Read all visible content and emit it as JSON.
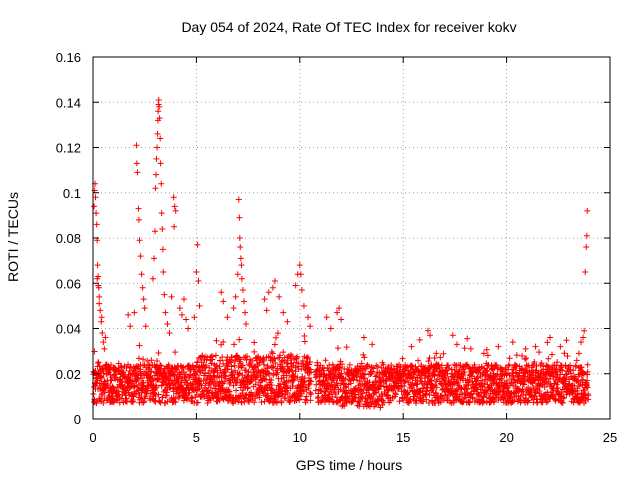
{
  "chart_data": {
    "type": "scatter",
    "title": "Day 054 of 2024, Rate Of TEC Index for receiver kokv",
    "xlabel": "GPS time / hours",
    "ylabel": "ROTI / TECUs",
    "xlim": [
      0,
      25
    ],
    "ylim": [
      0,
      0.16
    ],
    "xticks": [
      0,
      5,
      10,
      15,
      20,
      25
    ],
    "xtick_labels": [
      "0",
      "5",
      "10",
      "15",
      "20",
      "25"
    ],
    "yticks": [
      0,
      0.02,
      0.04,
      0.06,
      0.08,
      0.1,
      0.12,
      0.14,
      0.16
    ],
    "ytick_labels": [
      "0",
      "0.02",
      "0.04",
      "0.06",
      "0.08",
      "0.1",
      "0.12",
      "0.14",
      "0.16"
    ],
    "grid": true,
    "marker": "+",
    "marker_color": "#ff0000",
    "grid_color": "#a0a0a0",
    "series": [
      {
        "name": "ROTI",
        "points": [
          [
            0.05,
            0.094
          ],
          [
            0.08,
            0.101
          ],
          [
            0.1,
            0.104
          ],
          [
            0.12,
            0.098
          ],
          [
            0.15,
            0.091
          ],
          [
            0.18,
            0.086
          ],
          [
            0.2,
            0.079
          ],
          [
            0.22,
            0.068
          ],
          [
            0.25,
            0.063
          ],
          [
            0.28,
            0.058
          ],
          [
            0.3,
            0.054
          ],
          [
            0.35,
            0.048
          ],
          [
            0.4,
            0.043
          ],
          [
            0.45,
            0.038
          ],
          [
            0.5,
            0.034
          ],
          [
            0.2,
            0.062
          ],
          [
            0.25,
            0.059
          ],
          [
            0.3,
            0.051
          ],
          [
            0.42,
            0.045
          ],
          [
            0.55,
            0.031
          ],
          [
            0.6,
            0.036
          ],
          [
            1.7,
            0.046
          ],
          [
            1.8,
            0.041
          ],
          [
            2.0,
            0.047
          ],
          [
            2.1,
            0.121
          ],
          [
            2.12,
            0.113
          ],
          [
            2.15,
            0.109
          ],
          [
            2.2,
            0.093
          ],
          [
            2.22,
            0.088
          ],
          [
            2.25,
            0.079
          ],
          [
            2.3,
            0.072
          ],
          [
            2.35,
            0.064
          ],
          [
            2.4,
            0.058
          ],
          [
            2.45,
            0.053
          ],
          [
            2.5,
            0.049
          ],
          [
            2.55,
            0.041
          ],
          [
            2.9,
            0.062
          ],
          [
            2.95,
            0.071
          ],
          [
            3.0,
            0.083
          ],
          [
            3.02,
            0.102
          ],
          [
            3.05,
            0.108
          ],
          [
            3.07,
            0.115
          ],
          [
            3.1,
            0.12
          ],
          [
            3.12,
            0.126
          ],
          [
            3.14,
            0.132
          ],
          [
            3.15,
            0.136
          ],
          [
            3.17,
            0.139
          ],
          [
            3.18,
            0.141
          ],
          [
            3.2,
            0.138
          ],
          [
            3.22,
            0.133
          ],
          [
            3.25,
            0.124
          ],
          [
            3.27,
            0.113
          ],
          [
            3.3,
            0.104
          ],
          [
            3.32,
            0.091
          ],
          [
            3.35,
            0.084
          ],
          [
            3.38,
            0.075
          ],
          [
            3.4,
            0.065
          ],
          [
            3.45,
            0.055
          ],
          [
            3.5,
            0.047
          ],
          [
            3.9,
            0.098
          ],
          [
            3.95,
            0.094
          ],
          [
            4.0,
            0.092
          ],
          [
            3.92,
            0.085
          ],
          [
            3.8,
            0.054
          ],
          [
            4.2,
            0.049
          ],
          [
            4.3,
            0.046
          ],
          [
            4.4,
            0.053
          ],
          [
            4.5,
            0.044
          ],
          [
            4.6,
            0.04
          ],
          [
            3.6,
            0.042
          ],
          [
            3.7,
            0.038
          ],
          [
            4.9,
            0.045
          ],
          [
            5.0,
            0.065
          ],
          [
            5.05,
            0.077
          ],
          [
            5.1,
            0.061
          ],
          [
            5.15,
            0.05
          ],
          [
            6.2,
            0.056
          ],
          [
            6.3,
            0.052
          ],
          [
            6.5,
            0.045
          ],
          [
            6.8,
            0.049
          ],
          [
            6.9,
            0.054
          ],
          [
            7.0,
            0.064
          ],
          [
            7.05,
            0.097
          ],
          [
            7.08,
            0.089
          ],
          [
            7.1,
            0.08
          ],
          [
            7.12,
            0.076
          ],
          [
            7.15,
            0.071
          ],
          [
            7.18,
            0.068
          ],
          [
            7.2,
            0.062
          ],
          [
            7.25,
            0.057
          ],
          [
            7.3,
            0.052
          ],
          [
            7.35,
            0.047
          ],
          [
            7.4,
            0.042
          ],
          [
            8.3,
            0.053
          ],
          [
            8.4,
            0.048
          ],
          [
            8.5,
            0.056
          ],
          [
            8.7,
            0.058
          ],
          [
            8.8,
            0.061
          ],
          [
            9.0,
            0.054
          ],
          [
            9.2,
            0.047
          ],
          [
            9.4,
            0.043
          ],
          [
            9.8,
            0.059
          ],
          [
            9.9,
            0.064
          ],
          [
            10.0,
            0.068
          ],
          [
            10.05,
            0.064
          ],
          [
            10.1,
            0.057
          ],
          [
            10.2,
            0.05
          ],
          [
            10.4,
            0.045
          ],
          [
            10.5,
            0.041
          ],
          [
            11.3,
            0.045
          ],
          [
            11.5,
            0.04
          ],
          [
            11.8,
            0.047
          ],
          [
            11.9,
            0.049
          ],
          [
            12.0,
            0.044
          ],
          [
            13.1,
            0.036
          ],
          [
            13.5,
            0.033
          ],
          [
            15.4,
            0.032
          ],
          [
            15.8,
            0.035
          ],
          [
            16.2,
            0.039
          ],
          [
            16.3,
            0.037
          ],
          [
            16.6,
            0.029
          ],
          [
            17.4,
            0.037
          ],
          [
            17.6,
            0.033
          ],
          [
            18.9,
            0.029
          ],
          [
            19.6,
            0.032
          ],
          [
            20.3,
            0.034
          ],
          [
            21.4,
            0.032
          ],
          [
            22.1,
            0.036
          ],
          [
            22.6,
            0.032
          ],
          [
            23.5,
            0.029
          ],
          [
            23.6,
            0.034
          ],
          [
            23.7,
            0.036
          ],
          [
            23.75,
            0.039
          ],
          [
            23.8,
            0.065
          ],
          [
            23.85,
            0.076
          ],
          [
            23.88,
            0.081
          ],
          [
            23.9,
            0.092
          ]
        ]
      }
    ]
  }
}
